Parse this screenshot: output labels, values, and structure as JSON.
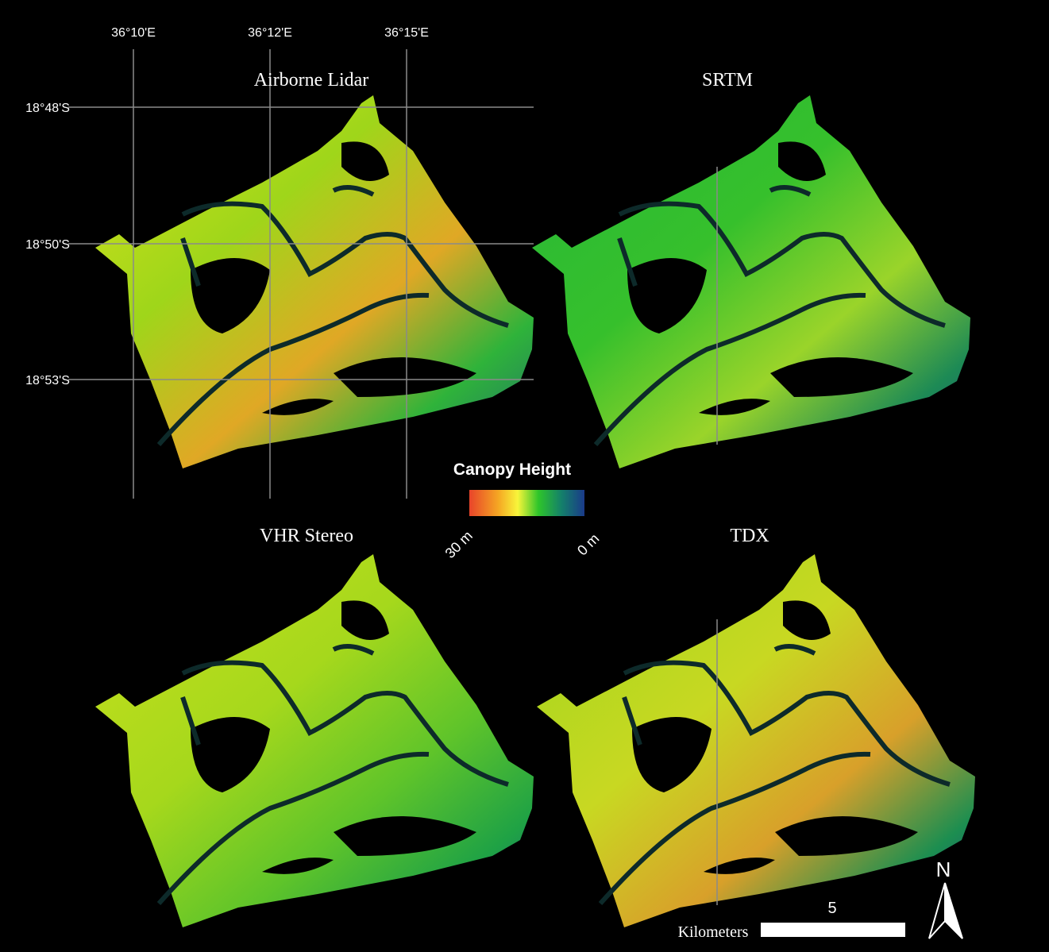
{
  "map": {
    "panels": [
      {
        "title": "Airborne Lidar"
      },
      {
        "title": "SRTM"
      },
      {
        "title": "VHR Stereo"
      },
      {
        "title": "TDX"
      }
    ],
    "grid": {
      "longitudes": [
        "36°10'E",
        "36°12'E",
        "36°15'E"
      ],
      "latitudes": [
        "18°48'S",
        "18°50'S",
        "18°53'S"
      ]
    },
    "legend": {
      "title": "Canopy Height",
      "max_label": "30 m",
      "min_label": "0 m"
    },
    "scale_bar": {
      "label": "5",
      "unit": "Kilometers"
    },
    "north_arrow": "N"
  }
}
